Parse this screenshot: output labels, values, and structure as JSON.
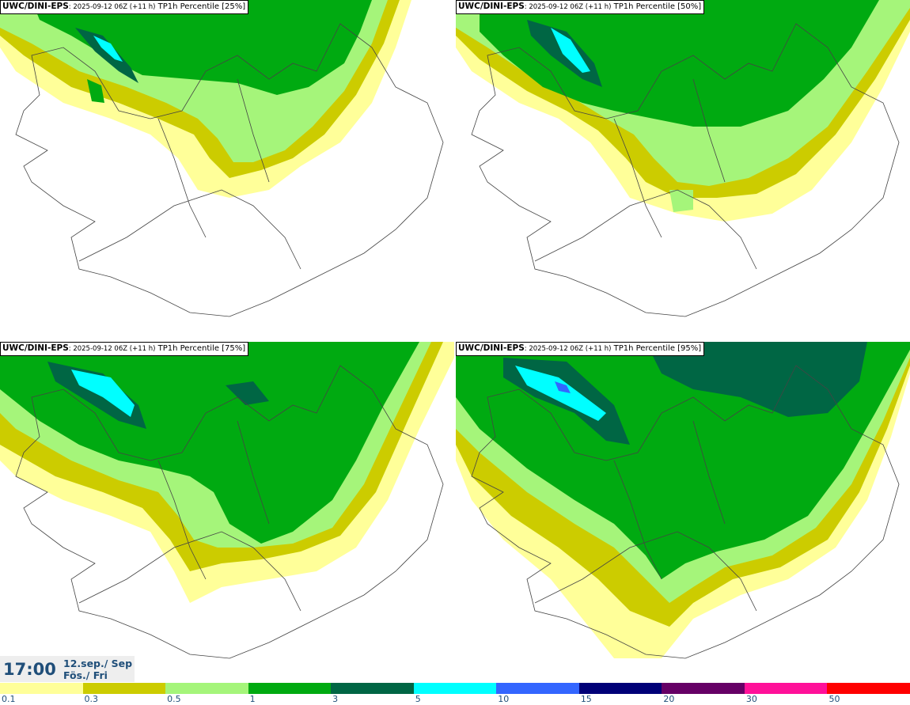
{
  "panels": [
    {
      "model": "UWC/DINI-EPS",
      "run": ": 2025-09-12 06Z (+11 h)",
      "field": " TP1h Percentile [25%]"
    },
    {
      "model": "UWC/DINI-EPS",
      "run": ": 2025-09-12 06Z (+11 h)",
      "field": " TP1h Percentile [50%]"
    },
    {
      "model": "UWC/DINI-EPS",
      "run": ": 2025-09-12 06Z (+11 h)",
      "field": " TP1h Percentile [75%]"
    },
    {
      "model": "UWC/DINI-EPS",
      "run": ": 2025-09-12 06Z (+11 h)",
      "field": " TP1h Percentile [95%]"
    }
  ],
  "valid_time": {
    "time": "17:00",
    "date": "12.sep./ Sep",
    "day": "Fös./ Fri"
  },
  "legend": {
    "labels": [
      "0.1",
      "0.3",
      "0.5",
      "1",
      "3",
      "5",
      "10",
      "15",
      "20",
      "30",
      "50"
    ],
    "colors": [
      "#ffff99",
      "#cccc00",
      "#a5f57a",
      "#00aa11",
      "#006644",
      "#00ffff",
      "#3366ff",
      "#000077",
      "#660066",
      "#ff1199",
      "#ff0000"
    ]
  }
}
